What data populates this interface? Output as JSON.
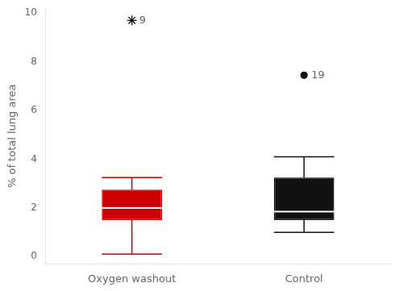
{
  "chart_data": {
    "type": "box",
    "categories": [
      "Oxygen washout",
      "Control"
    ],
    "ylabel": "% of total lung area",
    "ylim": [
      -0.3,
      10.2
    ],
    "yticks": [
      0,
      2,
      4,
      6,
      8,
      10
    ],
    "grid": false,
    "median_color": "#ffffff",
    "boxes": [
      {
        "median": 2.0,
        "q1": 1.5,
        "q3": 2.75,
        "whislo": 0.1,
        "whishi": 3.25,
        "color": "#cc0000",
        "outliers": [
          {
            "value": 9.7,
            "label": "9",
            "marker": "star",
            "color": "#000000"
          }
        ]
      },
      {
        "median": 1.85,
        "q1": 1.5,
        "q3": 3.25,
        "whislo": 1.0,
        "whishi": 4.1,
        "color": "#111111",
        "outliers": [
          {
            "value": 7.45,
            "label": "19",
            "marker": "circle",
            "color": "#111111"
          }
        ]
      }
    ]
  }
}
